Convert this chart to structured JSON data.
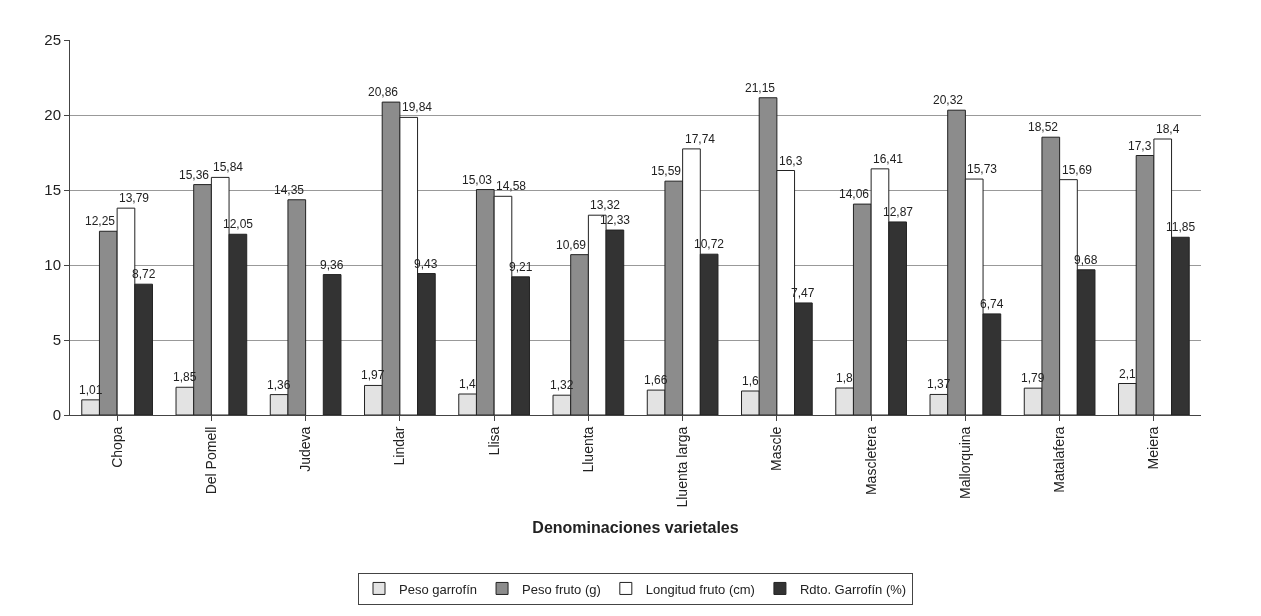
{
  "chart_data": {
    "type": "bar",
    "xlabel": "Denominaciones varietales",
    "categories": [
      "Chopa",
      "Del Pomell",
      "Judeva",
      "Lindar",
      "Llisa",
      "Lluenta",
      "Lluenta larga",
      "Mascle",
      "Mascletera",
      "Mallorquina",
      "Matalafera",
      "Meiera"
    ],
    "series": [
      {
        "name": "Peso garrofín",
        "color": "#e3e3e3",
        "values": [
          1.01,
          1.85,
          1.36,
          1.97,
          1.4,
          1.32,
          1.66,
          1.6,
          1.8,
          1.37,
          1.79,
          2.1
        ],
        "value_labels": [
          "1,01",
          "1,85",
          "1,36",
          "1,97",
          "1,4",
          "1,32",
          "1,66",
          "1,6",
          "1,8",
          "1,37",
          "1,79",
          "2,1"
        ]
      },
      {
        "name": "Peso fruto (g)",
        "color": "#8c8c8c",
        "values": [
          12.25,
          15.36,
          14.35,
          20.86,
          15.03,
          10.69,
          15.59,
          21.15,
          14.06,
          20.32,
          18.52,
          17.3
        ],
        "value_labels": [
          "12,25",
          "15,36",
          "14,35",
          "20,86",
          "15,03",
          "10,69",
          "15,59",
          "21,15",
          "14,06",
          "20,32",
          "18,52",
          "17,3"
        ]
      },
      {
        "name": "Longitud fruto (cm)",
        "color": "#ffffff",
        "values": [
          13.79,
          15.84,
          null,
          19.84,
          14.58,
          13.32,
          17.74,
          16.3,
          16.41,
          15.73,
          15.69,
          18.4
        ],
        "value_labels": [
          "13,79",
          "15,84",
          null,
          "19,84",
          "14,58",
          "13,32",
          "17,74",
          "16,3",
          "16,41",
          "15,73",
          "15,69",
          "18,4"
        ]
      },
      {
        "name": "Rdto. Garrofín (%)",
        "color": "#333333",
        "values": [
          8.72,
          12.05,
          9.36,
          9.43,
          9.21,
          12.33,
          10.72,
          7.47,
          12.87,
          6.74,
          9.68,
          11.85
        ],
        "value_labels": [
          "8,72",
          "12,05",
          "9,36",
          "9,43",
          "9,21",
          "12,33",
          "10,72",
          "7,47",
          "12,87",
          "6,74",
          "9,68",
          "11,85"
        ]
      }
    ],
    "ylim": [
      0,
      25
    ],
    "yticks": [
      0,
      5,
      10,
      15,
      20,
      25
    ],
    "grid": "y",
    "legend": "bottom"
  }
}
